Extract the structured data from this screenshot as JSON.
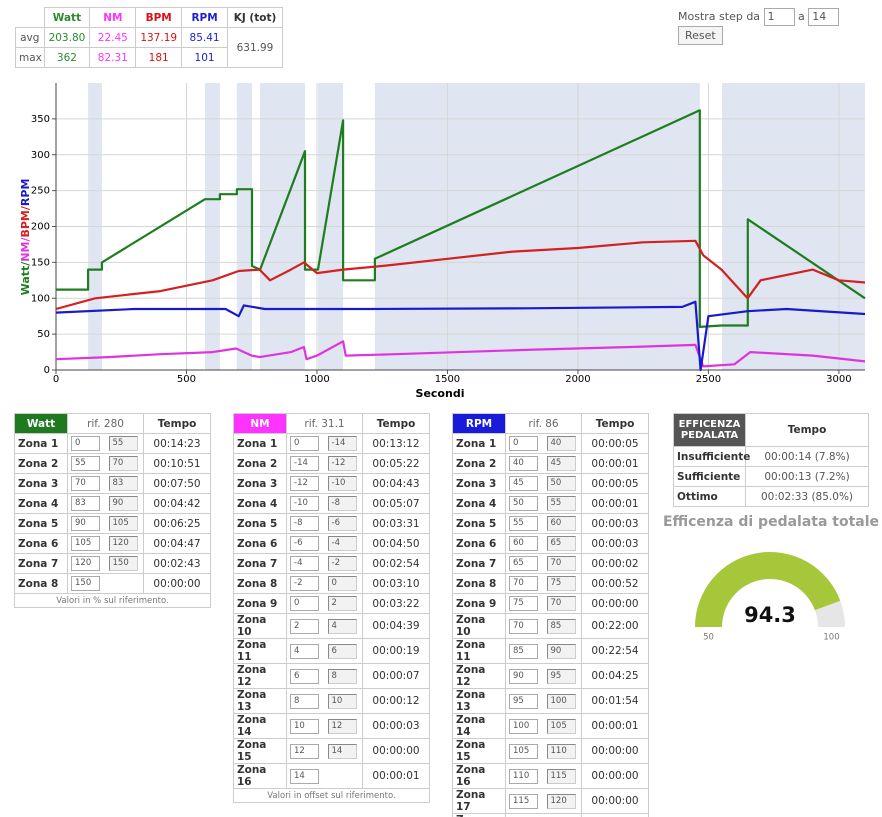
{
  "summary": {
    "headers": [
      "Watt",
      "NM",
      "BPM",
      "RPM",
      "KJ (tot)"
    ],
    "header_colors": [
      "#2a8c2a",
      "#ff33ff",
      "#dd1111",
      "#2222cc",
      "#333333"
    ],
    "rows": [
      {
        "label": "avg",
        "values": [
          "203.80",
          22.45,
          137.19,
          85.41
        ]
      },
      {
        "label": "max",
        "values": [
          362,
          82.31,
          181,
          101
        ]
      }
    ],
    "kj": 631.99
  },
  "controls": {
    "label_from": "Mostra step da",
    "from": 1,
    "label_to": "a",
    "to": 14,
    "reset": "Reset"
  },
  "chart_data": {
    "type": "line",
    "xlabel": "Secondi",
    "y_label_parts": [
      "Watt/",
      "NM/",
      "BPM/",
      "RPM"
    ],
    "xlim": [
      0,
      3100
    ],
    "ylim": [
      0,
      400
    ],
    "xticks": [
      0,
      500,
      1000,
      1500,
      2000,
      2500,
      3000
    ],
    "yticks": [
      0,
      50,
      100,
      150,
      200,
      250,
      300,
      350
    ],
    "grid": true,
    "band_color": "#dfe5f1",
    "bands": [
      [
        123,
        176
      ],
      [
        571,
        628
      ],
      [
        693,
        751
      ],
      [
        782,
        954
      ],
      [
        1004,
        1100
      ],
      [
        1222,
        2467
      ],
      [
        2552,
        3100
      ]
    ],
    "series": [
      {
        "color": "#1e7d1e",
        "x": [
          0,
          123,
          123,
          176,
          176,
          571,
          628,
          628,
          693,
          693,
          751,
          751,
          782,
          954,
          954,
          1004,
          1100,
          1100,
          1222,
          1222,
          2467,
          2467,
          2550,
          2651,
          2651,
          3100
        ],
        "values": [
          112,
          112,
          140,
          140,
          150,
          238,
          238,
          245,
          245,
          252,
          252,
          145,
          140,
          305,
          140,
          140,
          348,
          125,
          125,
          155,
          362,
          60,
          62,
          62,
          210,
          100
        ]
      },
      {
        "color": "#e033e0",
        "x": [
          0,
          200,
          400,
          600,
          690,
          750,
          780,
          900,
          950,
          960,
          1000,
          1100,
          1110,
          1300,
          1800,
          2200,
          2450,
          2480,
          2600,
          2660,
          2900,
          3100
        ],
        "values": [
          15,
          18,
          22,
          25,
          30,
          20,
          18,
          25,
          32,
          15,
          20,
          40,
          20,
          22,
          28,
          32,
          35,
          5,
          8,
          25,
          20,
          12
        ]
      },
      {
        "color": "#d42020",
        "x": [
          0,
          150,
          400,
          600,
          700,
          780,
          820,
          900,
          950,
          1000,
          1100,
          1250,
          1500,
          1750,
          2000,
          2250,
          2450,
          2480,
          2550,
          2650,
          2700,
          2900,
          3000,
          3100
        ],
        "values": [
          85,
          100,
          110,
          125,
          138,
          140,
          125,
          140,
          150,
          135,
          140,
          145,
          155,
          165,
          170,
          178,
          180,
          160,
          140,
          100,
          125,
          140,
          125,
          122
        ]
      },
      {
        "color": "#1a1acc",
        "x": [
          0,
          300,
          650,
          700,
          720,
          800,
          1200,
          1800,
          2400,
          2450,
          2470,
          2500,
          2650,
          2800,
          3100
        ],
        "values": [
          80,
          85,
          85,
          75,
          90,
          85,
          85,
          86,
          88,
          95,
          0,
          75,
          82,
          85,
          78
        ]
      }
    ]
  },
  "zone_tables": [
    {
      "header": "Watt",
      "color": "#1f7a1f",
      "ref": "rif. 280",
      "time_header": "Tempo",
      "note": "Valori in % sul riferimento.",
      "rows": [
        {
          "zone": "Zona 1",
          "from": 0,
          "to": 55,
          "time": "00:14:23"
        },
        {
          "zone": "Zona 2",
          "from": 55,
          "to": 70,
          "time": "00:10:51"
        },
        {
          "zone": "Zona 3",
          "from": 70,
          "to": 83,
          "time": "00:07:50"
        },
        {
          "zone": "Zona 4",
          "from": 83,
          "to": 90,
          "time": "00:04:42"
        },
        {
          "zone": "Zona 5",
          "from": 90,
          "to": 105,
          "time": "00:06:25"
        },
        {
          "zone": "Zona 6",
          "from": 105,
          "to": 120,
          "time": "00:04:47"
        },
        {
          "zone": "Zona 7",
          "from": 120,
          "to": 150,
          "time": "00:02:43"
        },
        {
          "zone": "Zona 8",
          "from": 150,
          "time": "00:00:00"
        }
      ]
    },
    {
      "header": "NM",
      "color": "#ff33ff",
      "ref": "rif. 31.1",
      "time_header": "Tempo",
      "note": "Valori in offset sul riferimento.",
      "rows": [
        {
          "zone": "Zona 1",
          "from": 0,
          "to": -14,
          "time": "00:13:12"
        },
        {
          "zone": "Zona 2",
          "from": -14,
          "to": -12,
          "time": "00:05:22"
        },
        {
          "zone": "Zona 3",
          "from": -12,
          "to": -10,
          "time": "00:04:43"
        },
        {
          "zone": "Zona 4",
          "from": -10,
          "to": -8,
          "time": "00:05:07"
        },
        {
          "zone": "Zona 5",
          "from": -8,
          "to": -6,
          "time": "00:03:31"
        },
        {
          "zone": "Zona 6",
          "from": -6,
          "to": -4,
          "time": "00:04:50"
        },
        {
          "zone": "Zona 7",
          "from": -4,
          "to": -2,
          "time": "00:02:54"
        },
        {
          "zone": "Zona 8",
          "from": -2,
          "to": 0,
          "time": "00:03:10"
        },
        {
          "zone": "Zona 9",
          "from": 0,
          "to": 2,
          "time": "00:03:22"
        },
        {
          "zone": "Zona 10",
          "from": 2,
          "to": 4,
          "time": "00:04:39"
        },
        {
          "zone": "Zona 11",
          "from": 4,
          "to": 6,
          "time": "00:00:19"
        },
        {
          "zone": "Zona 12",
          "from": 6,
          "to": 8,
          "time": "00:00:07"
        },
        {
          "zone": "Zona 13",
          "from": 8,
          "to": 10,
          "time": "00:00:12"
        },
        {
          "zone": "Zona 14",
          "from": 10,
          "to": 12,
          "time": "00:00:03"
        },
        {
          "zone": "Zona 15",
          "from": 12,
          "to": 14,
          "time": "00:00:00"
        },
        {
          "zone": "Zona 16",
          "from": 14,
          "time": "00:00:01"
        }
      ]
    },
    {
      "header": "RPM",
      "color": "#1a1adb",
      "ref": "rif. 86",
      "time_header": "Tempo",
      "note": "Valori assoluti.",
      "rows": [
        {
          "zone": "Zona 1",
          "from": 0,
          "to": 40,
          "time": "00:00:05"
        },
        {
          "zone": "Zona 2",
          "from": 40,
          "to": 45,
          "time": "00:00:01"
        },
        {
          "zone": "Zona 3",
          "from": 45,
          "to": 50,
          "time": "00:00:05"
        },
        {
          "zone": "Zona 4",
          "from": 50,
          "to": 55,
          "time": "00:00:01"
        },
        {
          "zone": "Zona 5",
          "from": 55,
          "to": 60,
          "time": "00:00:03"
        },
        {
          "zone": "Zona 6",
          "from": 60,
          "to": 65,
          "time": "00:00:03"
        },
        {
          "zone": "Zona 7",
          "from": 65,
          "to": 70,
          "time": "00:00:02"
        },
        {
          "zone": "Zona 8",
          "from": 70,
          "to": 75,
          "time": "00:00:52"
        },
        {
          "zone": "Zona 9",
          "from": 75,
          "to": 70,
          "time": "00:00:00"
        },
        {
          "zone": "Zona 10",
          "from": 70,
          "to": 85,
          "time": "00:22:00"
        },
        {
          "zone": "Zona 11",
          "from": 85,
          "to": 90,
          "time": "00:22:54"
        },
        {
          "zone": "Zona 12",
          "from": 90,
          "to": 95,
          "time": "00:04:25"
        },
        {
          "zone": "Zona 13",
          "from": 95,
          "to": 100,
          "time": "00:01:54"
        },
        {
          "zone": "Zona 14",
          "from": 100,
          "to": 105,
          "time": "00:00:01"
        },
        {
          "zone": "Zona 15",
          "from": 105,
          "to": 110,
          "time": "00:00:00"
        },
        {
          "zone": "Zona 16",
          "from": 110,
          "to": 115,
          "time": "00:00:00"
        },
        {
          "zone": "Zona 17",
          "from": 115,
          "to": 120,
          "time": "00:00:00"
        },
        {
          "zone": "Zona 18",
          "from": 120,
          "time": "00:00:00"
        }
      ]
    }
  ],
  "efficiency": {
    "header": "EFFICENZA PEDALATA",
    "time_header": "Tempo",
    "rows": [
      {
        "label": "Insufficiente",
        "time": "00:00:14 (7.8%)"
      },
      {
        "label": "Sufficiente",
        "time": "00:00:13 (7.2%)"
      },
      {
        "label": "Ottimo",
        "time": "00:02:33 (85.0%)"
      }
    ]
  },
  "gauge": {
    "title": "Efficenza di pedalata totale",
    "value": 94.3,
    "min": 50,
    "max": 100,
    "color": "#a6c73a",
    "track_color": "#e6e6e6"
  }
}
